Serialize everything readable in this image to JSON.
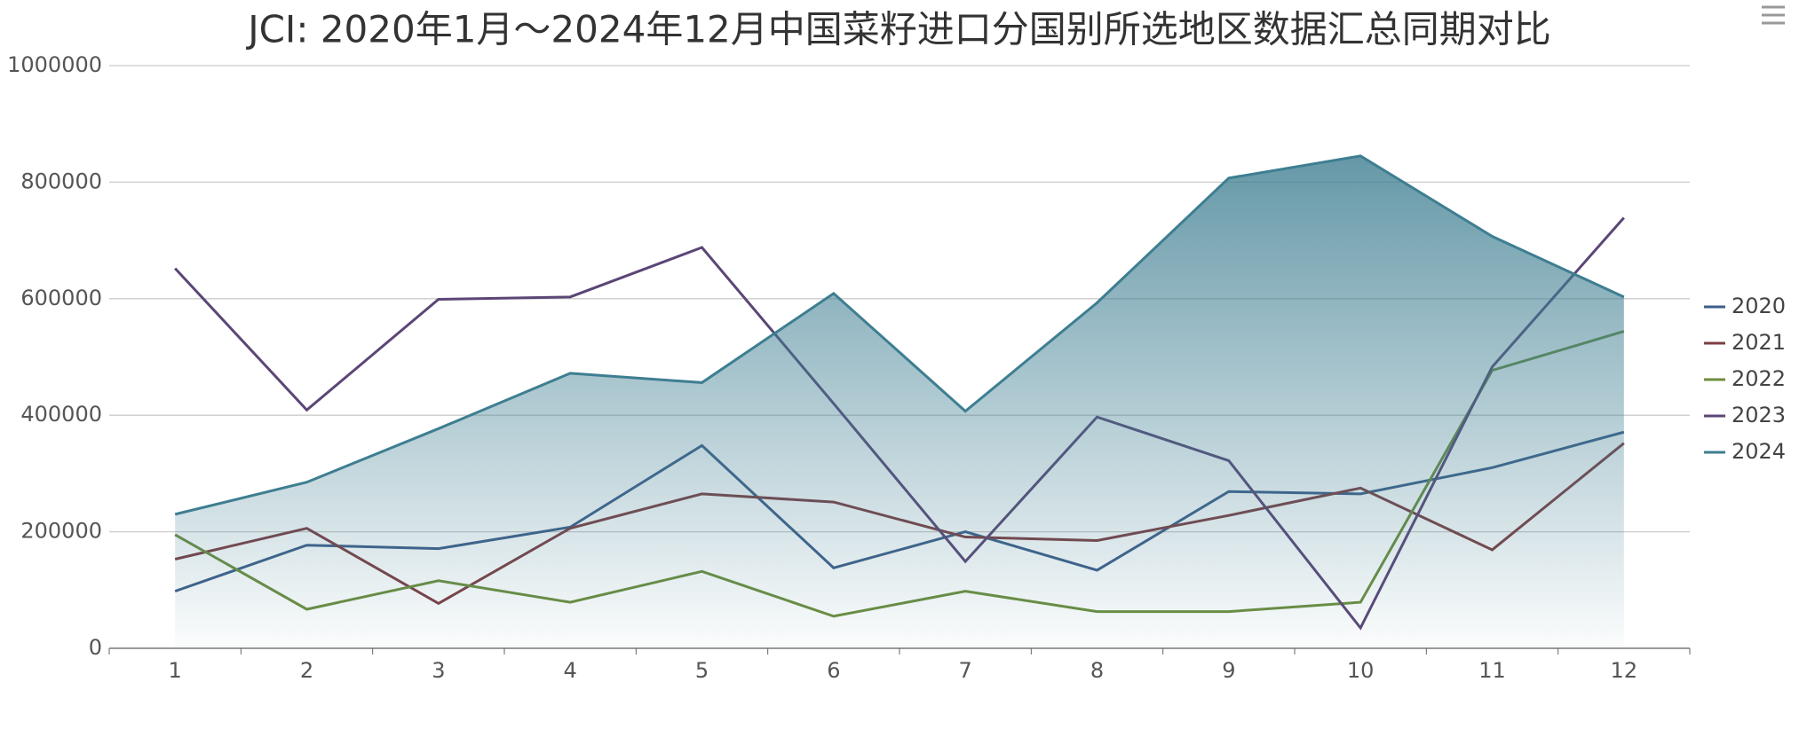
{
  "chart_data": {
    "type": "line",
    "title": "JCI: 2020年1月～2024年12月中国菜籽进口分国别所选地区数据汇总同期对比",
    "categories": [
      "1",
      "2",
      "3",
      "4",
      "5",
      "6",
      "7",
      "8",
      "9",
      "10",
      "11",
      "12"
    ],
    "series": [
      {
        "name": "2020",
        "color": "#3e5f8a",
        "values": [
          98000,
          177000,
          171000,
          208000,
          348000,
          138000,
          200000,
          134000,
          269000,
          265000,
          310000,
          371000
        ]
      },
      {
        "name": "2021",
        "color": "#7d3e42",
        "values": [
          153000,
          206000,
          77000,
          206000,
          265000,
          251000,
          191000,
          185000,
          228000,
          275000,
          169000,
          352000
        ]
      },
      {
        "name": "2022",
        "color": "#6c8e3e",
        "values": [
          195000,
          67000,
          116000,
          79000,
          132000,
          55000,
          98000,
          63000,
          63000,
          79000,
          477000,
          544000
        ]
      },
      {
        "name": "2023",
        "color": "#5b4676",
        "values": [
          652000,
          409000,
          599000,
          603000,
          688000,
          420000,
          149000,
          397000,
          322000,
          35000,
          483000,
          739000
        ]
      },
      {
        "name": "2024",
        "color": "#3e7e91",
        "area": true,
        "values": [
          230000,
          285000,
          377000,
          472000,
          456000,
          609000,
          407000,
          593000,
          807000,
          845000,
          707000,
          603000
        ]
      }
    ],
    "ylim": [
      0,
      1000000
    ],
    "yticks": [
      0,
      200000,
      400000,
      600000,
      800000,
      1000000
    ],
    "grid": true,
    "legend": "right"
  }
}
